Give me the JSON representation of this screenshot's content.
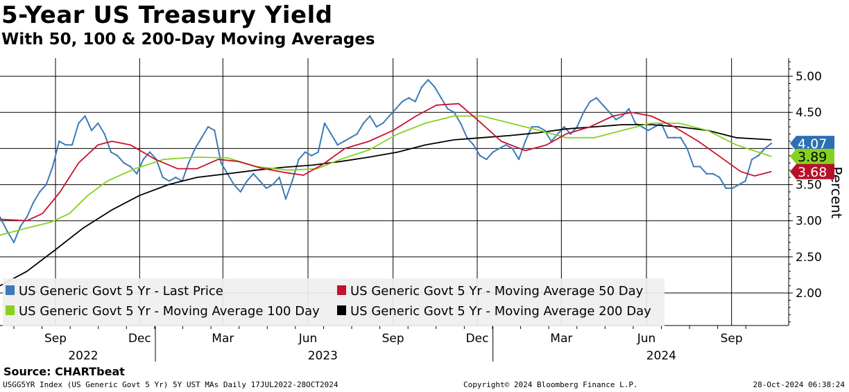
{
  "title": "5-Year US Treasury Yield",
  "subtitle": "With 50, 100 & 200-Day Moving Averages",
  "footer": {
    "source": "Source: CHARTbeat",
    "left": "USGG5YR Index (US Generic Govt 5 Yr) 5Y UST MAs  Daily 17JUL2022-28OCT2024",
    "middle": "Copyright© 2024 Bloomberg Finance L.P.",
    "right": "28-Oct-2024 06:38:24"
  },
  "chart_data": {
    "type": "line",
    "ylabel": "Percent",
    "ylim": [
      1.55,
      5.25
    ],
    "yticks": [
      "5.00",
      "4.50",
      "4.00",
      "3.50",
      "3.00",
      "2.50",
      "2.00"
    ],
    "x_start": "2022-07-17",
    "x_end": "2024-10-28",
    "month_ticks": [
      {
        "label": "Sep",
        "date": "2022-09-15"
      },
      {
        "label": "Dec",
        "date": "2022-12-15"
      },
      {
        "label": "Mar",
        "date": "2023-03-15"
      },
      {
        "label": "Jun",
        "date": "2023-06-15"
      },
      {
        "label": "Sep",
        "date": "2023-09-15"
      },
      {
        "label": "Dec",
        "date": "2023-12-15"
      },
      {
        "label": "Mar",
        "date": "2024-03-15"
      },
      {
        "label": "Jun",
        "date": "2024-06-15"
      },
      {
        "label": "Sep",
        "date": "2024-09-15"
      }
    ],
    "year_labels": [
      {
        "label": "2022",
        "date": "2022-10-15"
      },
      {
        "label": "2023",
        "date": "2023-07-01"
      },
      {
        "label": "2024",
        "date": "2024-07-01"
      }
    ],
    "year_boundaries": [
      "2023-01-01",
      "2024-01-01"
    ],
    "legend": {
      "placement": "bottom-left",
      "items": [
        {
          "label": "US Generic Govt 5 Yr - Last Price",
          "color": "#3d7ab8"
        },
        {
          "label": "US Generic Govt 5 Yr - Moving Average 50 Day",
          "color": "#c8102e"
        },
        {
          "label": "US Generic Govt 5 Yr - Moving Average 100 Day",
          "color": "#86d11f"
        },
        {
          "label": "US Generic Govt 5 Yr - Moving Average 200 Day",
          "color": "#000000"
        }
      ]
    },
    "end_labels": [
      {
        "value": "4.07",
        "color": "#2e6fb0",
        "text_color": "#ffffff"
      },
      {
        "value": "3.89",
        "color": "#86d11f",
        "text_color": "#000000"
      },
      {
        "value": "3.68",
        "color": "#b5122a",
        "text_color": "#ffffff"
      }
    ],
    "series": [
      {
        "name": "US Generic Govt 5 Yr - Last Price",
        "color": "#3d7ab8",
        "points": [
          [
            "2022-07-17",
            3.05
          ],
          [
            "2022-07-25",
            2.85
          ],
          [
            "2022-08-01",
            2.7
          ],
          [
            "2022-08-08",
            2.92
          ],
          [
            "2022-08-15",
            3.05
          ],
          [
            "2022-08-22",
            3.25
          ],
          [
            "2022-08-29",
            3.4
          ],
          [
            "2022-09-05",
            3.5
          ],
          [
            "2022-09-12",
            3.75
          ],
          [
            "2022-09-19",
            4.1
          ],
          [
            "2022-09-26",
            4.05
          ],
          [
            "2022-10-03",
            4.05
          ],
          [
            "2022-10-10",
            4.35
          ],
          [
            "2022-10-17",
            4.45
          ],
          [
            "2022-10-24",
            4.25
          ],
          [
            "2022-10-31",
            4.35
          ],
          [
            "2022-11-07",
            4.2
          ],
          [
            "2022-11-14",
            3.95
          ],
          [
            "2022-11-21",
            3.9
          ],
          [
            "2022-11-28",
            3.8
          ],
          [
            "2022-12-05",
            3.75
          ],
          [
            "2022-12-12",
            3.65
          ],
          [
            "2022-12-19",
            3.85
          ],
          [
            "2022-12-26",
            3.95
          ],
          [
            "2023-01-02",
            3.85
          ],
          [
            "2023-01-09",
            3.6
          ],
          [
            "2023-01-16",
            3.55
          ],
          [
            "2023-01-23",
            3.6
          ],
          [
            "2023-01-30",
            3.55
          ],
          [
            "2023-02-06",
            3.8
          ],
          [
            "2023-02-13",
            4.0
          ],
          [
            "2023-02-20",
            4.15
          ],
          [
            "2023-02-27",
            4.3
          ],
          [
            "2023-03-06",
            4.25
          ],
          [
            "2023-03-13",
            3.8
          ],
          [
            "2023-03-20",
            3.65
          ],
          [
            "2023-03-27",
            3.5
          ],
          [
            "2023-04-03",
            3.4
          ],
          [
            "2023-04-10",
            3.55
          ],
          [
            "2023-04-17",
            3.65
          ],
          [
            "2023-04-24",
            3.55
          ],
          [
            "2023-05-01",
            3.45
          ],
          [
            "2023-05-08",
            3.5
          ],
          [
            "2023-05-15",
            3.6
          ],
          [
            "2023-05-22",
            3.3
          ],
          [
            "2023-05-29",
            3.55
          ],
          [
            "2023-06-05",
            3.85
          ],
          [
            "2023-06-12",
            3.95
          ],
          [
            "2023-06-19",
            3.9
          ],
          [
            "2023-06-26",
            3.95
          ],
          [
            "2023-07-03",
            4.35
          ],
          [
            "2023-07-10",
            4.2
          ],
          [
            "2023-07-17",
            4.05
          ],
          [
            "2023-07-24",
            4.1
          ],
          [
            "2023-07-31",
            4.15
          ],
          [
            "2023-08-07",
            4.2
          ],
          [
            "2023-08-14",
            4.35
          ],
          [
            "2023-08-21",
            4.45
          ],
          [
            "2023-08-28",
            4.3
          ],
          [
            "2023-09-04",
            4.35
          ],
          [
            "2023-09-11",
            4.45
          ],
          [
            "2023-09-18",
            4.55
          ],
          [
            "2023-09-25",
            4.65
          ],
          [
            "2023-10-02",
            4.7
          ],
          [
            "2023-10-09",
            4.65
          ],
          [
            "2023-10-16",
            4.85
          ],
          [
            "2023-10-23",
            4.95
          ],
          [
            "2023-10-30",
            4.85
          ],
          [
            "2023-11-06",
            4.7
          ],
          [
            "2023-11-13",
            4.55
          ],
          [
            "2023-11-20",
            4.5
          ],
          [
            "2023-11-27",
            4.35
          ],
          [
            "2023-12-04",
            4.15
          ],
          [
            "2023-12-11",
            4.05
          ],
          [
            "2023-12-18",
            3.9
          ],
          [
            "2023-12-25",
            3.85
          ],
          [
            "2024-01-01",
            3.95
          ],
          [
            "2024-01-08",
            4.0
          ],
          [
            "2024-01-15",
            4.05
          ],
          [
            "2024-01-22",
            4.0
          ],
          [
            "2024-01-29",
            3.85
          ],
          [
            "2024-02-05",
            4.1
          ],
          [
            "2024-02-12",
            4.3
          ],
          [
            "2024-02-19",
            4.3
          ],
          [
            "2024-02-26",
            4.25
          ],
          [
            "2024-03-04",
            4.1
          ],
          [
            "2024-03-11",
            4.2
          ],
          [
            "2024-03-18",
            4.3
          ],
          [
            "2024-03-25",
            4.2
          ],
          [
            "2024-04-01",
            4.3
          ],
          [
            "2024-04-08",
            4.5
          ],
          [
            "2024-04-15",
            4.65
          ],
          [
            "2024-04-22",
            4.7
          ],
          [
            "2024-04-29",
            4.6
          ],
          [
            "2024-05-06",
            4.5
          ],
          [
            "2024-05-13",
            4.4
          ],
          [
            "2024-05-20",
            4.45
          ],
          [
            "2024-05-27",
            4.55
          ],
          [
            "2024-06-03",
            4.35
          ],
          [
            "2024-06-10",
            4.3
          ],
          [
            "2024-06-17",
            4.25
          ],
          [
            "2024-06-24",
            4.3
          ],
          [
            "2024-07-01",
            4.35
          ],
          [
            "2024-07-08",
            4.15
          ],
          [
            "2024-07-15",
            4.15
          ],
          [
            "2024-07-22",
            4.15
          ],
          [
            "2024-07-29",
            4.0
          ],
          [
            "2024-08-05",
            3.75
          ],
          [
            "2024-08-12",
            3.75
          ],
          [
            "2024-08-19",
            3.65
          ],
          [
            "2024-08-26",
            3.65
          ],
          [
            "2024-09-02",
            3.6
          ],
          [
            "2024-09-09",
            3.45
          ],
          [
            "2024-09-16",
            3.45
          ],
          [
            "2024-09-23",
            3.5
          ],
          [
            "2024-09-30",
            3.55
          ],
          [
            "2024-10-07",
            3.85
          ],
          [
            "2024-10-14",
            3.9
          ],
          [
            "2024-10-21",
            4.0
          ],
          [
            "2024-10-28",
            4.07
          ]
        ]
      },
      {
        "name": "US Generic Govt 5 Yr - Moving Average 50 Day",
        "color": "#c8102e",
        "points": [
          [
            "2022-07-17",
            3.02
          ],
          [
            "2022-08-15",
            3.0
          ],
          [
            "2022-09-01",
            3.1
          ],
          [
            "2022-09-20",
            3.4
          ],
          [
            "2022-10-10",
            3.8
          ],
          [
            "2022-10-31",
            4.05
          ],
          [
            "2022-11-15",
            4.1
          ],
          [
            "2022-12-05",
            4.05
          ],
          [
            "2023-01-01",
            3.85
          ],
          [
            "2023-01-25",
            3.72
          ],
          [
            "2023-02-15",
            3.72
          ],
          [
            "2023-03-10",
            3.85
          ],
          [
            "2023-04-01",
            3.82
          ],
          [
            "2023-04-25",
            3.73
          ],
          [
            "2023-05-20",
            3.67
          ],
          [
            "2023-06-10",
            3.63
          ],
          [
            "2023-07-01",
            3.78
          ],
          [
            "2023-07-25",
            4.0
          ],
          [
            "2023-08-20",
            4.1
          ],
          [
            "2023-09-15",
            4.25
          ],
          [
            "2023-10-10",
            4.45
          ],
          [
            "2023-11-01",
            4.6
          ],
          [
            "2023-11-25",
            4.62
          ],
          [
            "2023-12-15",
            4.4
          ],
          [
            "2024-01-10",
            4.1
          ],
          [
            "2024-02-05",
            3.97
          ],
          [
            "2024-02-28",
            4.05
          ],
          [
            "2024-03-20",
            4.2
          ],
          [
            "2024-04-15",
            4.3
          ],
          [
            "2024-05-10",
            4.45
          ],
          [
            "2024-05-30",
            4.5
          ],
          [
            "2024-06-20",
            4.45
          ],
          [
            "2024-07-15",
            4.3
          ],
          [
            "2024-08-10",
            4.1
          ],
          [
            "2024-09-01",
            3.9
          ],
          [
            "2024-09-25",
            3.68
          ],
          [
            "2024-10-10",
            3.62
          ],
          [
            "2024-10-28",
            3.68
          ]
        ]
      },
      {
        "name": "US Generic Govt 5 Yr - Moving Average 100 Day",
        "color": "#86d11f",
        "points": [
          [
            "2022-07-17",
            2.8
          ],
          [
            "2022-08-15",
            2.9
          ],
          [
            "2022-09-10",
            2.98
          ],
          [
            "2022-09-30",
            3.1
          ],
          [
            "2022-10-20",
            3.35
          ],
          [
            "2022-11-10",
            3.55
          ],
          [
            "2022-12-10",
            3.72
          ],
          [
            "2023-01-10",
            3.85
          ],
          [
            "2023-02-15",
            3.88
          ],
          [
            "2023-03-20",
            3.87
          ],
          [
            "2023-04-20",
            3.75
          ],
          [
            "2023-05-25",
            3.7
          ],
          [
            "2023-06-25",
            3.72
          ],
          [
            "2023-07-20",
            3.85
          ],
          [
            "2023-08-20",
            3.98
          ],
          [
            "2023-09-20",
            4.2
          ],
          [
            "2023-10-20",
            4.35
          ],
          [
            "2023-11-20",
            4.45
          ],
          [
            "2023-12-20",
            4.45
          ],
          [
            "2024-01-20",
            4.35
          ],
          [
            "2024-02-20",
            4.25
          ],
          [
            "2024-03-20",
            4.15
          ],
          [
            "2024-04-20",
            4.15
          ],
          [
            "2024-05-20",
            4.25
          ],
          [
            "2024-06-20",
            4.35
          ],
          [
            "2024-07-20",
            4.35
          ],
          [
            "2024-08-20",
            4.25
          ],
          [
            "2024-09-20",
            4.05
          ],
          [
            "2024-10-28",
            3.89
          ]
        ]
      },
      {
        "name": "US Generic Govt 5 Yr - Moving Average 200 Day",
        "color": "#000000",
        "points": [
          [
            "2022-07-17",
            2.1
          ],
          [
            "2022-08-15",
            2.3
          ],
          [
            "2022-09-15",
            2.6
          ],
          [
            "2022-10-15",
            2.9
          ],
          [
            "2022-11-15",
            3.15
          ],
          [
            "2022-12-15",
            3.35
          ],
          [
            "2023-01-15",
            3.5
          ],
          [
            "2023-02-15",
            3.6
          ],
          [
            "2023-03-20",
            3.65
          ],
          [
            "2023-04-20",
            3.7
          ],
          [
            "2023-05-20",
            3.74
          ],
          [
            "2023-06-20",
            3.77
          ],
          [
            "2023-07-20",
            3.82
          ],
          [
            "2023-08-20",
            3.88
          ],
          [
            "2023-09-20",
            3.95
          ],
          [
            "2023-10-20",
            4.05
          ],
          [
            "2023-11-20",
            4.12
          ],
          [
            "2023-12-20",
            4.15
          ],
          [
            "2024-01-20",
            4.18
          ],
          [
            "2024-02-20",
            4.22
          ],
          [
            "2024-03-20",
            4.27
          ],
          [
            "2024-04-20",
            4.3
          ],
          [
            "2024-05-20",
            4.33
          ],
          [
            "2024-06-20",
            4.33
          ],
          [
            "2024-07-20",
            4.3
          ],
          [
            "2024-08-20",
            4.25
          ],
          [
            "2024-09-20",
            4.15
          ],
          [
            "2024-10-28",
            4.12
          ]
        ]
      }
    ]
  }
}
